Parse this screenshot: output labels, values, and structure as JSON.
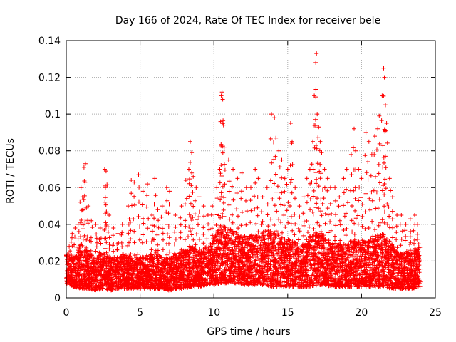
{
  "chart_data": {
    "type": "scatter",
    "title": "Day 166 of 2024, Rate Of TEC Index for receiver bele",
    "xlabel": "GPS time / hours",
    "ylabel": "ROTI / TECUs",
    "xlim": [
      0,
      25
    ],
    "ylim": [
      0,
      0.14
    ],
    "x_ticks": [
      0,
      5,
      10,
      15,
      20,
      25
    ],
    "x_tick_labels": [
      "0",
      "5",
      "10",
      "15",
      "20",
      "25"
    ],
    "y_ticks": [
      0,
      0.02,
      0.04,
      0.06,
      0.08,
      0.1,
      0.12,
      0.14
    ],
    "y_tick_labels": [
      "0",
      "0.02",
      "0.04",
      "0.06",
      "0.08",
      "0.1",
      "0.12",
      "0.14"
    ],
    "grid": true,
    "marker": "plus",
    "marker_color": "#ff0000",
    "points": [
      [
        0.2,
        0.028
      ],
      [
        0.4,
        0.035
      ],
      [
        0.6,
        0.038
      ],
      [
        0.8,
        0.04
      ],
      [
        1.0,
        0.06
      ],
      [
        1.1,
        0.055
      ],
      [
        1.2,
        0.071
      ],
      [
        1.3,
        0.073
      ],
      [
        1.5,
        0.05
      ],
      [
        1.7,
        0.042
      ],
      [
        2.0,
        0.04
      ],
      [
        2.3,
        0.038
      ],
      [
        2.6,
        0.07
      ],
      [
        2.7,
        0.069
      ],
      [
        2.65,
        0.06
      ],
      [
        2.9,
        0.045
      ],
      [
        3.2,
        0.038
      ],
      [
        3.5,
        0.035
      ],
      [
        3.8,
        0.04
      ],
      [
        4.2,
        0.05
      ],
      [
        4.4,
        0.064
      ],
      [
        4.6,
        0.063
      ],
      [
        4.9,
        0.067
      ],
      [
        5.2,
        0.058
      ],
      [
        5.5,
        0.062
      ],
      [
        5.8,
        0.045
      ],
      [
        6.0,
        0.065
      ],
      [
        6.2,
        0.048
      ],
      [
        6.5,
        0.05
      ],
      [
        6.8,
        0.06
      ],
      [
        7.0,
        0.058
      ],
      [
        7.4,
        0.045
      ],
      [
        7.8,
        0.05
      ],
      [
        8.1,
        0.064
      ],
      [
        8.3,
        0.07
      ],
      [
        8.4,
        0.085
      ],
      [
        8.5,
        0.079
      ],
      [
        8.6,
        0.066
      ],
      [
        8.8,
        0.06
      ],
      [
        9.0,
        0.055
      ],
      [
        9.3,
        0.05
      ],
      [
        9.6,
        0.045
      ],
      [
        9.9,
        0.05
      ],
      [
        10.2,
        0.06
      ],
      [
        10.4,
        0.07
      ],
      [
        10.5,
        0.11
      ],
      [
        10.55,
        0.112
      ],
      [
        10.6,
        0.108
      ],
      [
        10.65,
        0.094
      ],
      [
        10.7,
        0.082
      ],
      [
        11.0,
        0.075
      ],
      [
        11.3,
        0.07
      ],
      [
        11.6,
        0.065
      ],
      [
        11.9,
        0.068
      ],
      [
        12.2,
        0.06
      ],
      [
        12.5,
        0.06
      ],
      [
        12.8,
        0.07
      ],
      [
        13.0,
        0.065
      ],
      [
        13.3,
        0.055
      ],
      [
        13.6,
        0.06
      ],
      [
        13.9,
        0.1
      ],
      [
        14.1,
        0.098
      ],
      [
        14.2,
        0.087
      ],
      [
        14.4,
        0.08
      ],
      [
        14.6,
        0.075
      ],
      [
        14.8,
        0.065
      ],
      [
        15.0,
        0.07
      ],
      [
        15.2,
        0.095
      ],
      [
        15.3,
        0.085
      ],
      [
        15.5,
        0.06
      ],
      [
        15.8,
        0.05
      ],
      [
        16.1,
        0.055
      ],
      [
        16.3,
        0.065
      ],
      [
        16.5,
        0.07
      ],
      [
        16.7,
        0.085
      ],
      [
        16.8,
        0.11
      ],
      [
        16.9,
        0.128
      ],
      [
        16.95,
        0.133
      ],
      [
        17.0,
        0.1
      ],
      [
        17.1,
        0.093
      ],
      [
        17.2,
        0.085
      ],
      [
        17.3,
        0.079
      ],
      [
        17.5,
        0.07
      ],
      [
        17.7,
        0.065
      ],
      [
        17.9,
        0.06
      ],
      [
        18.2,
        0.06
      ],
      [
        18.5,
        0.055
      ],
      [
        18.8,
        0.065
      ],
      [
        19.0,
        0.07
      ],
      [
        19.3,
        0.078
      ],
      [
        19.5,
        0.092
      ],
      [
        19.6,
        0.08
      ],
      [
        19.8,
        0.07
      ],
      [
        20.0,
        0.065
      ],
      [
        20.3,
        0.09
      ],
      [
        20.5,
        0.085
      ],
      [
        20.7,
        0.078
      ],
      [
        20.9,
        0.088
      ],
      [
        21.1,
        0.092
      ],
      [
        21.2,
        0.099
      ],
      [
        21.4,
        0.11
      ],
      [
        21.5,
        0.125
      ],
      [
        21.55,
        0.12
      ],
      [
        21.6,
        0.105
      ],
      [
        21.7,
        0.095
      ],
      [
        21.9,
        0.065
      ],
      [
        22.1,
        0.055
      ],
      [
        22.4,
        0.045
      ],
      [
        22.7,
        0.045
      ],
      [
        23.0,
        0.04
      ],
      [
        23.3,
        0.043
      ],
      [
        23.6,
        0.045
      ],
      [
        23.8,
        0.04
      ]
    ],
    "baseline_envelope": [
      [
        0.0,
        0.008,
        0.025
      ],
      [
        0.5,
        0.006,
        0.022
      ],
      [
        1.0,
        0.005,
        0.03
      ],
      [
        1.5,
        0.005,
        0.025
      ],
      [
        2.0,
        0.004,
        0.022
      ],
      [
        2.5,
        0.005,
        0.025
      ],
      [
        3.0,
        0.004,
        0.022
      ],
      [
        3.5,
        0.005,
        0.022
      ],
      [
        4.0,
        0.005,
        0.025
      ],
      [
        4.5,
        0.005,
        0.022
      ],
      [
        5.0,
        0.005,
        0.022
      ],
      [
        5.5,
        0.005,
        0.023
      ],
      [
        6.0,
        0.005,
        0.025
      ],
      [
        6.5,
        0.005,
        0.022
      ],
      [
        7.0,
        0.004,
        0.022
      ],
      [
        7.5,
        0.005,
        0.024
      ],
      [
        8.0,
        0.005,
        0.026
      ],
      [
        8.5,
        0.006,
        0.028
      ],
      [
        9.0,
        0.006,
        0.025
      ],
      [
        9.5,
        0.007,
        0.028
      ],
      [
        10.0,
        0.007,
        0.032
      ],
      [
        10.5,
        0.008,
        0.04
      ],
      [
        11.0,
        0.008,
        0.038
      ],
      [
        11.5,
        0.008,
        0.036
      ],
      [
        12.0,
        0.007,
        0.034
      ],
      [
        12.5,
        0.007,
        0.034
      ],
      [
        13.0,
        0.007,
        0.035
      ],
      [
        13.5,
        0.007,
        0.038
      ],
      [
        14.0,
        0.006,
        0.036
      ],
      [
        14.5,
        0.006,
        0.034
      ],
      [
        15.0,
        0.006,
        0.032
      ],
      [
        15.5,
        0.006,
        0.03
      ],
      [
        16.0,
        0.006,
        0.03
      ],
      [
        16.5,
        0.006,
        0.034
      ],
      [
        17.0,
        0.007,
        0.035
      ],
      [
        17.5,
        0.007,
        0.034
      ],
      [
        18.0,
        0.006,
        0.03
      ],
      [
        18.5,
        0.006,
        0.03
      ],
      [
        19.0,
        0.006,
        0.03
      ],
      [
        19.5,
        0.006,
        0.032
      ],
      [
        20.0,
        0.006,
        0.03
      ],
      [
        20.5,
        0.006,
        0.032
      ],
      [
        21.0,
        0.006,
        0.034
      ],
      [
        21.5,
        0.006,
        0.035
      ],
      [
        22.0,
        0.005,
        0.03
      ],
      [
        22.5,
        0.005,
        0.025
      ],
      [
        23.0,
        0.005,
        0.025
      ],
      [
        23.5,
        0.005,
        0.025
      ],
      [
        24.0,
        0.006,
        0.03
      ]
    ]
  }
}
